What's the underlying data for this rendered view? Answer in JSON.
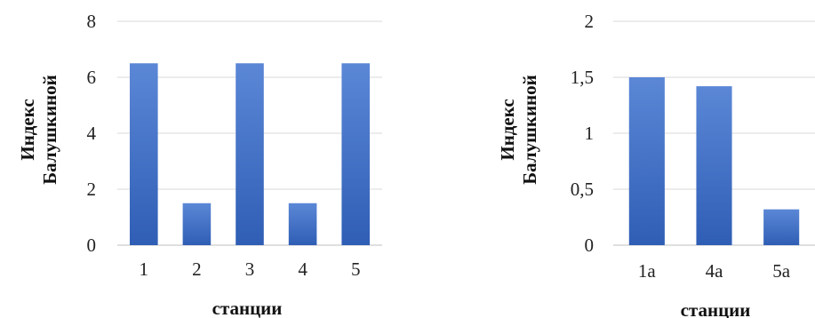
{
  "chart_data": [
    {
      "type": "bar",
      "categories": [
        "1",
        "2",
        "3",
        "4",
        "5"
      ],
      "values": [
        6.5,
        1.5,
        6.5,
        1.5,
        6.5
      ],
      "ylim": [
        0,
        8
      ],
      "yticks": [
        0,
        2,
        4,
        6,
        8
      ],
      "ytick_labels": [
        "0",
        "2",
        "4",
        "6",
        "8"
      ],
      "xlabel": "станции",
      "ylabel": [
        "Индекс",
        "Балушкиной"
      ],
      "grid": true,
      "bar_color": "#4472c4"
    },
    {
      "type": "bar",
      "categories": [
        "1a",
        "4a",
        "5a"
      ],
      "values": [
        1.5,
        1.42,
        0.32
      ],
      "ylim": [
        0,
        2
      ],
      "yticks": [
        0,
        0.5,
        1,
        1.5,
        2
      ],
      "ytick_labels": [
        "0",
        "0,5",
        "1",
        "1,5",
        "2"
      ],
      "xlabel": "станции",
      "ylabel": [
        "Индекс",
        "Балушкиной"
      ],
      "grid": true,
      "bar_color": "#4472c4"
    }
  ]
}
